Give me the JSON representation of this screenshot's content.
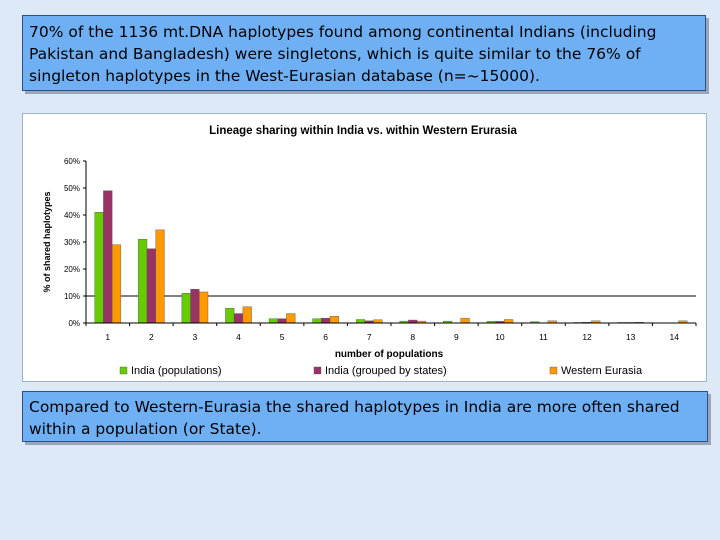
{
  "top_text": "70% of the 1136 mt.DNA haplotypes found among continental Indians (including Pakistan and Bangladesh) were singletons, which is quite similar to the 76% of singleton haplotypes in the West-Eurasian database (n=~15000).",
  "bottom_text": "Compared to Western-Eurasia the shared haplotypes in India are more often shared within a population (or State).",
  "chart_data": {
    "type": "bar",
    "title": "Lineage sharing within India vs. within Western Erurasia",
    "xlabel": "number of populations",
    "ylabel": "% of shared haplotypes",
    "categories": [
      "1",
      "2",
      "3",
      "4",
      "5",
      "6",
      "7",
      "8",
      "9",
      "10",
      "11",
      "12",
      "13",
      "14"
    ],
    "yticks": [
      "0%",
      "10%",
      "20%",
      "30%",
      "40%",
      "50%",
      "60%"
    ],
    "ylim": [
      0,
      60
    ],
    "reference_line": 10,
    "legend_position": "bottom",
    "series": [
      {
        "name": "India (populations)",
        "color": "#66cc00",
        "values": [
          41,
          31,
          11,
          5.5,
          1.6,
          1.6,
          1.3,
          0.7,
          0.7,
          0.6,
          0.5,
          0.2,
          0.2,
          0
        ]
      },
      {
        "name": "India (grouped by states)",
        "color": "#993366",
        "values": [
          49,
          27.5,
          12.5,
          3.5,
          1.6,
          1.8,
          0.8,
          1.1,
          0,
          0.6,
          0,
          0.3,
          0.2,
          0
        ]
      },
      {
        "name": "Western Eurasia",
        "color": "#ff9900",
        "values": [
          29,
          34.5,
          11.5,
          6,
          3.5,
          2.5,
          1.2,
          0.7,
          1.8,
          1.3,
          0.8,
          0.8,
          0.3,
          0.8
        ]
      }
    ]
  }
}
